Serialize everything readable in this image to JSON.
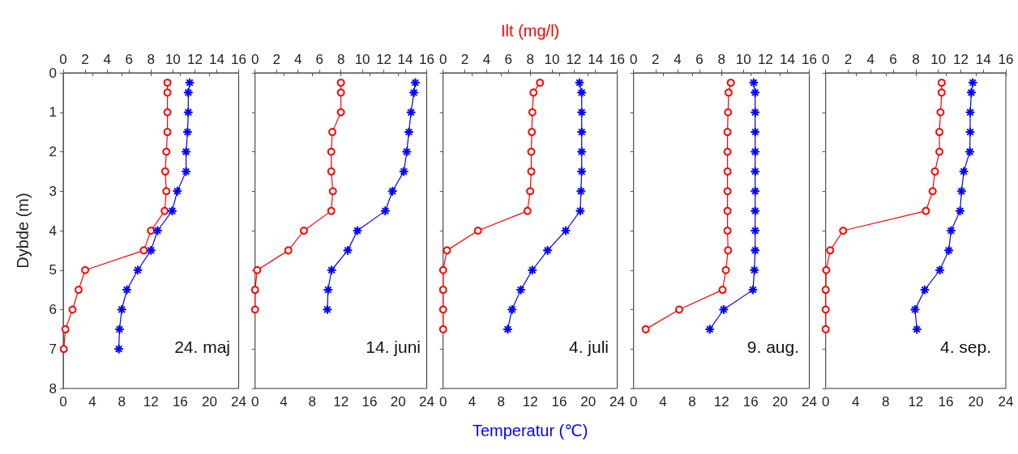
{
  "chart_data": [
    {
      "type": "line",
      "ylabel": "Dybde (m)",
      "ylim": [
        8,
        0
      ],
      "yticks": [
        0,
        1,
        2,
        3,
        4,
        5,
        6,
        7,
        8
      ],
      "xlim": [
        0,
        24
      ],
      "xticks": [
        0,
        4,
        8,
        12,
        16,
        20,
        24
      ],
      "x2lim": [
        0,
        16
      ],
      "x2ticks": [
        0,
        2,
        4,
        6,
        8,
        10,
        12,
        14,
        16
      ],
      "line_style": "solid",
      "annotations": [
        "24. maj"
      ],
      "series": [
        {
          "color": "#ff0000",
          "axis": "x2",
          "marker": "circle",
          "x": [
            9.5,
            9.5,
            9.5,
            9.5,
            9.4,
            9.3,
            9.4,
            9.25,
            8.0,
            7.35,
            2.0,
            1.4,
            0.85,
            0.2,
            0.05
          ],
          "values": [
            0.25,
            0.5,
            1,
            1.5,
            2,
            2.5,
            3,
            3.5,
            4,
            4.5,
            5,
            5.5,
            6,
            6.5,
            7
          ]
        },
        {
          "color": "#0000ff",
          "marker": "star",
          "x": [
            17.3,
            17.1,
            17.1,
            17.0,
            16.8,
            16.8,
            15.6,
            14.9,
            12.9,
            12.0,
            10.2,
            8.7,
            8.0,
            7.7,
            7.6
          ],
          "values": [
            0.25,
            0.5,
            1,
            1.5,
            2,
            2.5,
            3,
            3.5,
            4,
            4.5,
            5,
            5.5,
            6,
            6.5,
            7
          ]
        }
      ]
    },
    {
      "type": "line",
      "tick_labels": "x",
      "ylim": [
        8,
        0
      ],
      "yticks": [
        0,
        1,
        2,
        3,
        4,
        5,
        6,
        7,
        8
      ],
      "xlim": [
        0,
        24
      ],
      "xticks": [
        0,
        4,
        8,
        12,
        16,
        20,
        24
      ],
      "x2lim": [
        0,
        16
      ],
      "x2ticks": [
        0,
        2,
        4,
        6,
        8,
        10,
        12,
        14,
        16
      ],
      "line_style": "solid",
      "annotations": [
        "14. juni"
      ],
      "series": [
        {
          "color": "#ff0000",
          "axis": "x2",
          "marker": "circle",
          "x": [
            8.0,
            8.0,
            8.0,
            7.2,
            7.1,
            7.1,
            7.25,
            7.1,
            4.55,
            3.1,
            0.2,
            0,
            0
          ],
          "values": [
            0.25,
            0.5,
            1,
            1.5,
            2,
            2.5,
            3,
            3.5,
            4,
            4.5,
            5,
            5.5,
            6
          ]
        },
        {
          "color": "#0000ff",
          "marker": "star",
          "x": [
            22.4,
            22.2,
            21.8,
            21.5,
            21.2,
            20.8,
            19.2,
            18.2,
            14.3,
            12.95,
            10.7,
            10.2,
            10.1
          ],
          "values": [
            0.25,
            0.5,
            1,
            1.5,
            2,
            2.5,
            3,
            3.5,
            4,
            4.5,
            5,
            5.5,
            6
          ]
        }
      ]
    },
    {
      "type": "line",
      "tick_labels": "x",
      "ylim": [
        8,
        0
      ],
      "yticks": [
        0,
        1,
        2,
        3,
        4,
        5,
        6,
        7,
        8
      ],
      "xlim": [
        0,
        24
      ],
      "xticks": [
        0,
        4,
        8,
        12,
        16,
        20,
        24
      ],
      "x2lim": [
        0,
        16
      ],
      "x2ticks": [
        0,
        2,
        4,
        6,
        8,
        10,
        12,
        14,
        16
      ],
      "xlabel": "Temperatur (℃)",
      "x2label": "Ilt (mg/l)",
      "line_style": "solid",
      "annotations": [
        "4. juli"
      ],
      "series": [
        {
          "color": "#ff0000",
          "axis": "x2",
          "marker": "circle",
          "x": [
            8.9,
            8.3,
            8.2,
            8.15,
            8.1,
            8.1,
            8.0,
            7.75,
            3.2,
            0.35,
            0,
            0,
            0,
            0
          ],
          "values": [
            0.25,
            0.5,
            1,
            1.5,
            2,
            2.5,
            3,
            3.5,
            4,
            4.5,
            5,
            5.5,
            6,
            6.5
          ]
        },
        {
          "color": "#0000ff",
          "marker": "star",
          "x": [
            18.8,
            19.1,
            19.1,
            19.1,
            19.1,
            19.1,
            19.0,
            18.9,
            16.9,
            14.4,
            12.3,
            10.7,
            9.5,
            8.9
          ],
          "values": [
            0.25,
            0.5,
            1,
            1.5,
            2,
            2.5,
            3,
            3.5,
            4,
            4.5,
            5,
            5.5,
            6,
            6.5
          ]
        }
      ]
    },
    {
      "type": "line",
      "tick_labels": "x",
      "ylim": [
        8,
        0
      ],
      "yticks": [
        0,
        1,
        2,
        3,
        4,
        5,
        6,
        7,
        8
      ],
      "xlim": [
        0,
        24
      ],
      "xticks": [
        0,
        4,
        8,
        12,
        16,
        20,
        24
      ],
      "x2lim": [
        0,
        16
      ],
      "x2ticks": [
        0,
        2,
        4,
        6,
        8,
        10,
        12,
        14,
        16
      ],
      "line_style": "solid",
      "annotations": [
        "9. aug."
      ],
      "series": [
        {
          "color": "#ff0000",
          "axis": "x2",
          "marker": "circle",
          "x": [
            8.85,
            8.65,
            8.6,
            8.55,
            8.55,
            8.55,
            8.55,
            8.55,
            8.55,
            8.6,
            8.4,
            8.1,
            4.15,
            1.1
          ],
          "values": [
            0.25,
            0.5,
            1,
            1.5,
            2,
            2.5,
            3,
            3.5,
            4,
            4.5,
            5,
            5.5,
            6,
            6.5
          ]
        },
        {
          "color": "#0000ff",
          "marker": "star",
          "x": [
            16.4,
            16.6,
            16.6,
            16.6,
            16.6,
            16.6,
            16.6,
            16.6,
            16.6,
            16.6,
            16.5,
            16.3,
            12.3,
            10.4
          ],
          "values": [
            0.25,
            0.5,
            1,
            1.5,
            2,
            2.5,
            3,
            3.5,
            4,
            4.5,
            5,
            5.5,
            6,
            6.5
          ]
        }
      ]
    },
    {
      "type": "line",
      "tick_labels": "x",
      "ylim": [
        8,
        0
      ],
      "yticks": [
        0,
        1,
        2,
        3,
        4,
        5,
        6,
        7,
        8
      ],
      "xlim": [
        0,
        24
      ],
      "xticks": [
        0,
        4,
        8,
        12,
        16,
        20,
        24
      ],
      "x2lim": [
        0,
        16
      ],
      "x2ticks": [
        0,
        2,
        4,
        6,
        8,
        10,
        12,
        14,
        16
      ],
      "line_style": "solid",
      "annotations": [
        "4. sep."
      ],
      "series": [
        {
          "color": "#ff0000",
          "axis": "x2",
          "marker": "circle",
          "x": [
            10.3,
            10.3,
            10.2,
            10.1,
            10.1,
            9.7,
            9.5,
            8.9,
            1.55,
            0.4,
            0.05,
            0,
            0,
            0
          ],
          "values": [
            0.25,
            0.5,
            1,
            1.5,
            2,
            2.5,
            3,
            3.5,
            4,
            4.5,
            5,
            5.5,
            6,
            6.5
          ]
        },
        {
          "color": "#0000ff",
          "marker": "star",
          "x": [
            19.6,
            19.4,
            19.25,
            19.25,
            19.2,
            18.4,
            18.1,
            17.9,
            16.7,
            16.4,
            15.2,
            13.2,
            11.9,
            12.15
          ],
          "values": [
            0.25,
            0.5,
            1,
            1.5,
            2,
            2.5,
            3,
            3.5,
            4,
            4.5,
            5,
            5.5,
            6,
            6.5
          ]
        }
      ]
    }
  ]
}
